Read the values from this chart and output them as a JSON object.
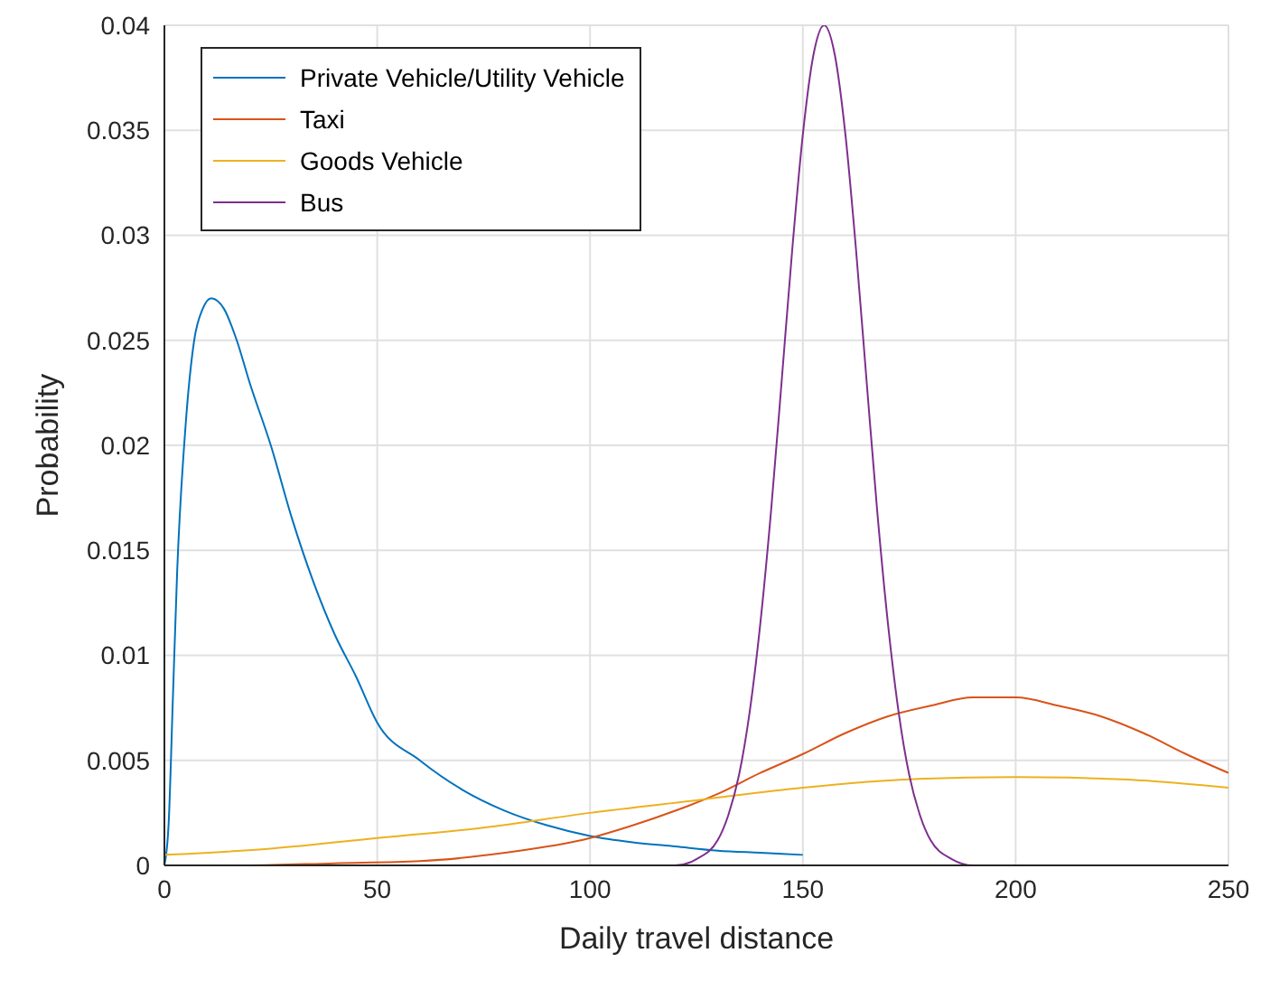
{
  "chart_data": {
    "type": "line",
    "xlabel": "Daily travel distance",
    "ylabel": "Probability",
    "xlim": [
      0,
      250
    ],
    "xticks": [
      0,
      50,
      100,
      150,
      200,
      250
    ],
    "ylim": [
      0,
      0.04
    ],
    "yticks": [
      0,
      0.005,
      0.01,
      0.015,
      0.02,
      0.025,
      0.03,
      0.035,
      0.04
    ],
    "grid": true,
    "legend": "top left",
    "line_style": "solid",
    "series": [
      {
        "name": "Private Vehicle/Utility Vehicle",
        "color": "#0072bd",
        "x": [
          0,
          1,
          2,
          3,
          5,
          7,
          9,
          11,
          14,
          17,
          20,
          25,
          30,
          35,
          40,
          45,
          50,
          60,
          70,
          80,
          90,
          100,
          110,
          120,
          130,
          140,
          150
        ],
        "values": [
          0,
          0.002,
          0.008,
          0.014,
          0.021,
          0.025,
          0.0265,
          0.027,
          0.0265,
          0.025,
          0.023,
          0.02,
          0.0165,
          0.0135,
          0.011,
          0.009,
          0.0068,
          0.005,
          0.0036,
          0.0026,
          0.0019,
          0.0014,
          0.0011,
          0.0009,
          0.0007,
          0.0006,
          0.0005
        ]
      },
      {
        "name": "Taxi",
        "color": "#d95319",
        "x": [
          0,
          20,
          40,
          60,
          80,
          100,
          110,
          120,
          130,
          140,
          150,
          160,
          170,
          180,
          190,
          200,
          210,
          220,
          230,
          240,
          250
        ],
        "values": [
          0,
          0,
          0.0001,
          0.0002,
          0.0006,
          0.0013,
          0.0019,
          0.0026,
          0.0034,
          0.0044,
          0.0053,
          0.0063,
          0.0071,
          0.0076,
          0.008,
          0.008,
          0.0076,
          0.0071,
          0.0063,
          0.0053,
          0.0044
        ]
      },
      {
        "name": "Goods Vehicle",
        "color": "#edb120",
        "x": [
          0,
          25,
          50,
          75,
          100,
          125,
          150,
          175,
          200,
          225,
          250
        ],
        "values": [
          0.0005,
          0.0008,
          0.0013,
          0.0018,
          0.0025,
          0.0031,
          0.0037,
          0.0041,
          0.0042,
          0.0041,
          0.0037
        ]
      },
      {
        "name": "Bus",
        "color": "#7e2f8e",
        "x": [
          0,
          100,
          120,
          125,
          130,
          132.5,
          135,
          137.5,
          140,
          142.5,
          145,
          147.5,
          150,
          152.5,
          155,
          157.5,
          160,
          162.5,
          165,
          167.5,
          170,
          172.5,
          175,
          177.5,
          180,
          185,
          190,
          200,
          250
        ],
        "values": [
          0,
          0,
          0,
          0.0003,
          0.0012,
          0.0024,
          0.0043,
          0.0073,
          0.0115,
          0.0168,
          0.023,
          0.0293,
          0.0348,
          0.0386,
          0.04,
          0.0386,
          0.0348,
          0.0293,
          0.023,
          0.0168,
          0.0115,
          0.0073,
          0.0043,
          0.0024,
          0.0012,
          0.0003,
          0,
          0,
          0
        ]
      }
    ]
  }
}
